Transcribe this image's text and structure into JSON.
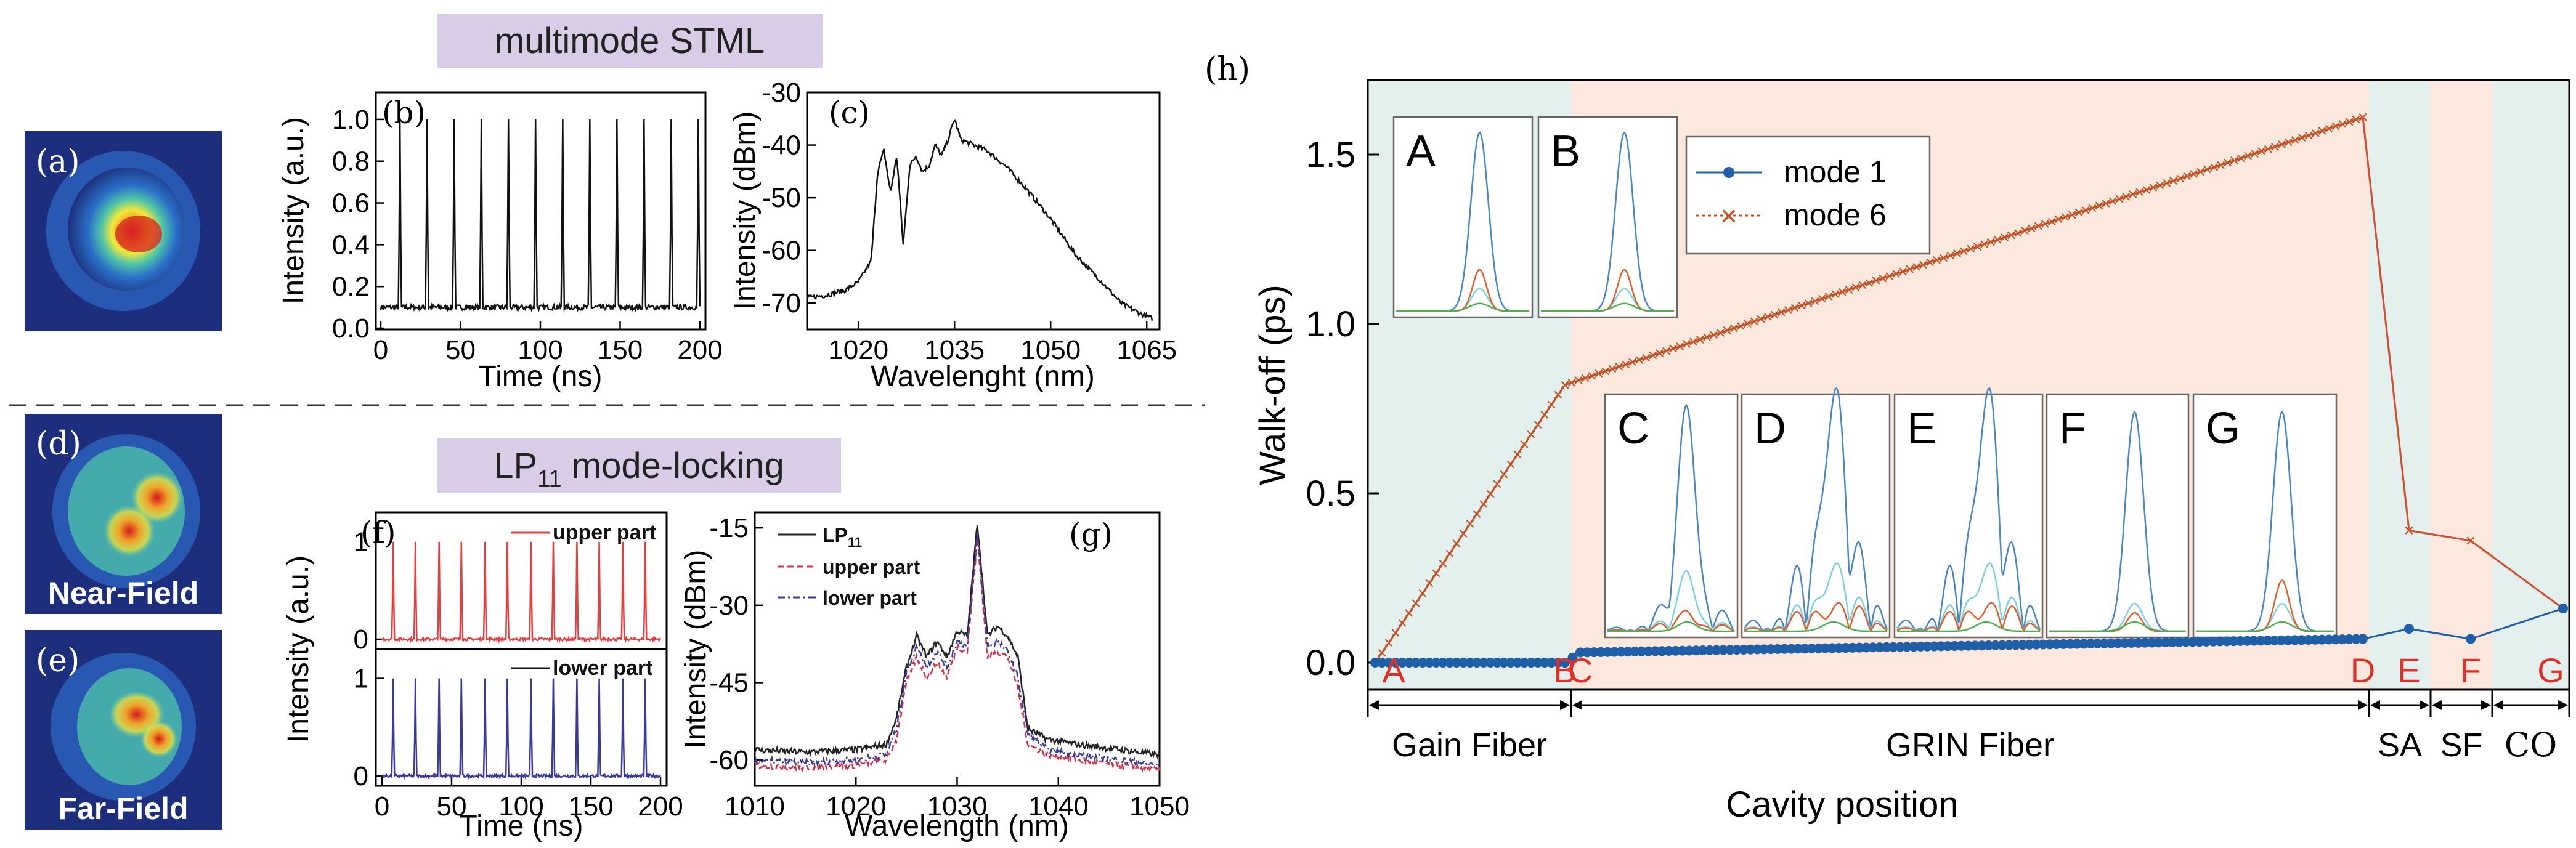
{
  "panels": {
    "top_title": "multimode STML",
    "bottom_title_main": "LP",
    "bottom_title_sub": "11",
    "bottom_title_rest": " mode-locking",
    "a": "(a)",
    "b": "(b)",
    "c": "(c)",
    "d": "(d)",
    "e": "(e)",
    "f": "(f)",
    "g": "(g)",
    "h": "(h)",
    "near_field": "Near-Field",
    "far_field": "Far-Field"
  },
  "colors": {
    "panel_title_bg": "#d9cce6",
    "gain_bg": "#e3f0ee",
    "grin_bg": "#fde8de",
    "mode1": "#1f5fa8",
    "mode6": "#c0552a",
    "red_label": "#e0302a",
    "trace_red": "#e34040",
    "trace_blue": "#3a3a9e"
  },
  "chart_data": [
    {
      "id": "b",
      "type": "line",
      "title": "",
      "xlabel": "Time (ns)",
      "ylabel": "Intensity (a.u.)",
      "xlim": [
        0,
        200
      ],
      "ylim": [
        0,
        1.1
      ],
      "xticks": [
        0,
        50,
        100,
        150,
        200
      ],
      "yticks": [
        0.0,
        0.2,
        0.4,
        0.6,
        0.8,
        1.0
      ],
      "pulse_times": [
        12,
        29,
        46,
        63,
        80,
        97,
        114,
        131,
        148,
        165,
        182,
        199
      ],
      "pulse_peak": 1.0,
      "baseline": 0.1
    },
    {
      "id": "c",
      "type": "line",
      "title": "",
      "xlabel": "Wavelenght (nm)",
      "ylabel": "Intensity (dBm)",
      "xlim": [
        1012,
        1067
      ],
      "ylim": [
        -75,
        -30
      ],
      "xticks": [
        1020,
        1035,
        1050,
        1065
      ],
      "yticks": [
        -70,
        -60,
        -50,
        -40,
        -30
      ],
      "series": [
        {
          "x": [
            1012,
            1015,
            1018,
            1020,
            1022,
            1023,
            1024,
            1025,
            1026,
            1027,
            1028,
            1029,
            1030,
            1031,
            1032,
            1033,
            1034,
            1035,
            1036,
            1038,
            1040,
            1043,
            1046,
            1050,
            1054,
            1058,
            1061,
            1064,
            1066
          ],
          "y": [
            -69,
            -68.5,
            -67.5,
            -66,
            -62,
            -45,
            -41,
            -49,
            -42,
            -59,
            -44,
            -42,
            -45,
            -44,
            -40,
            -42,
            -39,
            -35,
            -39,
            -40,
            -41,
            -44,
            -48,
            -54,
            -61,
            -66,
            -70,
            -72,
            -73
          ]
        }
      ]
    },
    {
      "id": "f",
      "type": "line",
      "title": "",
      "xlabel": "Time (ns)",
      "ylabel": "Intensity (a.u.)",
      "xlim": [
        0,
        200
      ],
      "xticks": [
        0,
        50,
        100,
        150,
        200
      ],
      "upper_yticks": [
        0,
        1
      ],
      "lower_yticks": [
        0,
        1
      ],
      "pulse_times": [
        8,
        24,
        41,
        57,
        74,
        90,
        107,
        123,
        140,
        156,
        173,
        189
      ],
      "series": [
        {
          "name": "upper part",
          "peak": 1.0
        },
        {
          "name": "lower part",
          "peak": 1.0
        }
      ]
    },
    {
      "id": "g",
      "type": "line",
      "title": "",
      "xlabel": "Wavelength (nm)",
      "ylabel": "Intensity (dBm)",
      "xlim": [
        1010,
        1050
      ],
      "ylim": [
        -65,
        -12
      ],
      "xticks": [
        1010,
        1020,
        1030,
        1040,
        1050
      ],
      "yticks": [
        -15,
        -30,
        -45,
        -60
      ],
      "legend_position": "top-left",
      "series": [
        {
          "name": "LP",
          "name_sub": "11",
          "style": "solid",
          "x": [
            1010,
            1015,
            1020,
            1023,
            1024,
            1025,
            1026,
            1027,
            1028,
            1029,
            1030,
            1031,
            1032,
            1033,
            1034,
            1035,
            1036,
            1037,
            1039,
            1042,
            1046,
            1050
          ],
          "y": [
            -58,
            -58.5,
            -58,
            -57,
            -52,
            -42,
            -36,
            -40,
            -37,
            -40,
            -35,
            -36,
            -14,
            -36,
            -34,
            -36,
            -40,
            -54,
            -56,
            -57,
            -58,
            -59
          ]
        },
        {
          "name": "upper part",
          "style": "dashed",
          "x": [
            1010,
            1015,
            1020,
            1023,
            1024,
            1025,
            1026,
            1027,
            1028,
            1029,
            1030,
            1031,
            1032,
            1033,
            1034,
            1035,
            1036,
            1037,
            1039,
            1042,
            1046,
            1050
          ],
          "y": [
            -61,
            -61.5,
            -61,
            -60,
            -56,
            -45,
            -40,
            -44,
            -41,
            -44,
            -38,
            -39,
            -17,
            -40,
            -39,
            -40,
            -46,
            -57,
            -59,
            -60,
            -61,
            -62
          ]
        },
        {
          "name": "lower part",
          "style": "dashdot",
          "x": [
            1010,
            1015,
            1020,
            1023,
            1024,
            1025,
            1026,
            1027,
            1028,
            1029,
            1030,
            1031,
            1032,
            1033,
            1034,
            1035,
            1036,
            1037,
            1039,
            1042,
            1046,
            1050
          ],
          "y": [
            -60,
            -60.5,
            -60,
            -59,
            -54,
            -43,
            -38,
            -42,
            -39,
            -42,
            -37,
            -38,
            -16,
            -38,
            -37,
            -39,
            -44,
            -55,
            -58,
            -59,
            -60,
            -61
          ]
        }
      ]
    },
    {
      "id": "h",
      "type": "line",
      "title": "",
      "xlabel": "Cavity position",
      "ylabel": "Walk-off (ps)",
      "ylim": [
        -0.08,
        1.72
      ],
      "yticks": [
        0.0,
        0.5,
        1.0,
        1.5
      ],
      "ytick_labels": [
        "0.0",
        "0.5",
        "1.0",
        "1.5"
      ],
      "legend_position": "top",
      "position_markers": [
        "A",
        "B",
        "C",
        "D",
        "E",
        "F",
        "G"
      ],
      "segments": [
        {
          "label": "Gain Fiber",
          "from": "A",
          "to": "B"
        },
        {
          "label": "GRIN Fiber",
          "from": "C",
          "to": "D"
        },
        {
          "label": "SA",
          "from": "D",
          "to": "E"
        },
        {
          "label": "SF",
          "from": "E",
          "to": "F"
        },
        {
          "label": "CO",
          "from": "F",
          "to": "G"
        }
      ],
      "series": [
        {
          "name": "mode 1",
          "points": [
            {
              "at": "A",
              "y": 0.0
            },
            {
              "at": "B",
              "y": 0.0
            },
            {
              "at": "C",
              "y": 0.03
            },
            {
              "at": "D",
              "y": 0.07
            },
            {
              "at": "E",
              "y": 0.1
            },
            {
              "at": "F",
              "y": 0.07
            },
            {
              "at": "G",
              "y": 0.16
            }
          ]
        },
        {
          "name": "mode 6",
          "points": [
            {
              "at": "A",
              "y": 0.0
            },
            {
              "at": "B",
              "y": 0.82
            },
            {
              "at": "D",
              "y": 1.61
            },
            {
              "at": "E",
              "y": 0.39
            },
            {
              "at": "F",
              "y": 0.36
            },
            {
              "at": "G",
              "y": 0.16
            }
          ]
        }
      ],
      "insets": [
        "A",
        "B",
        "C",
        "D",
        "E",
        "F",
        "G"
      ]
    }
  ]
}
